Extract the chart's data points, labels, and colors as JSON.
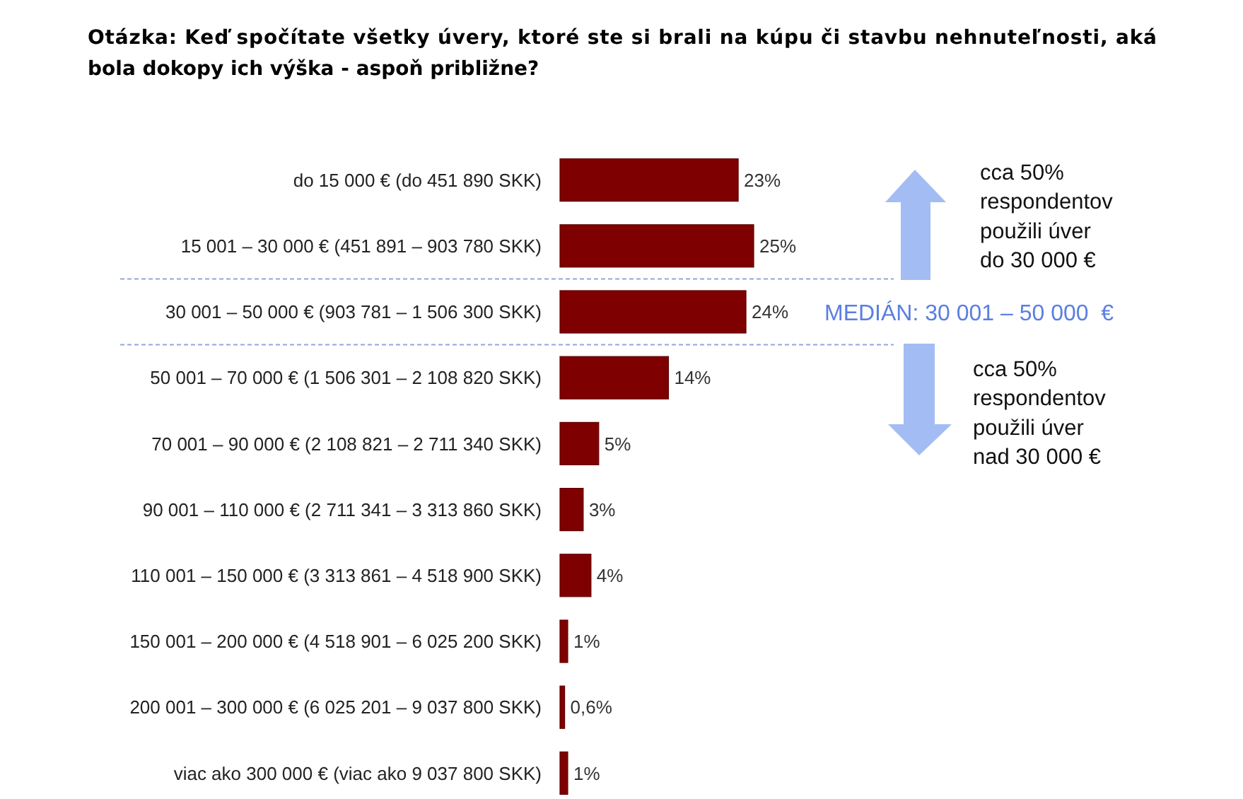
{
  "chart_data": {
    "type": "bar",
    "orientation": "horizontal",
    "title": "Otázka: Keď spočítate všetky úvery, ktoré ste si brali na kúpu či stavbu nehnuteľnosti, aká bola dokopy ich výška - aspoň približne?",
    "categories": [
      "do 15 000 € (do 451 890 SKK)",
      "15 001 – 30 000 € (451 891 – 903 780 SKK)",
      "30 001 – 50 000 € (903 781 – 1 506 300 SKK)",
      "50 001 – 70 000 € (1 506 301 – 2 108 820 SKK)",
      "70 001 – 90 000 € (2 108 821 – 2 711 340 SKK)",
      "90 001 – 110 000 € (2 711 341 – 3 313 860 SKK)",
      "110 001 – 150 000 € (3 313 861 – 4 518 900 SKK)",
      "150 001 – 200 000 € (4 518 901 – 6 025 200 SKK)",
      "200 001 – 300 000 € (6 025 201 – 9 037 800 SKK)",
      "viac ako 300 000 € (viac ako 9 037 800 SKK)"
    ],
    "values": [
      23,
      25,
      24,
      14,
      5,
      3,
      4,
      1,
      0.6,
      1
    ],
    "value_labels": [
      "23%",
      "25%",
      "24%",
      "14%",
      "5%",
      "3%",
      "4%",
      "1%",
      "0,6%",
      "1%"
    ],
    "color": "#7f0000",
    "annotations": [
      "cca 50%\nrespondentov\npoužili úver\ndo 30 000 €",
      "MEDIÁN: 30 001 – 50 000  €",
      "cca 50%\nrespondentov\npoužili úver\nnad 30 000 €"
    ]
  }
}
